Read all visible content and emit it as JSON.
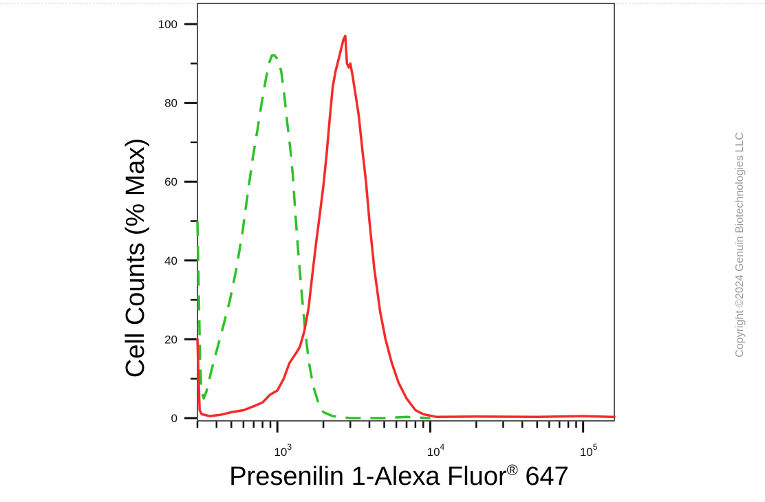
{
  "chart_data": {
    "type": "line",
    "xlabel": "Presenilin 1-Alexa Fluor",
    "xlabel_sup": "®",
    "xlabel_tail": " 647",
    "ylabel": "Cell Counts (% Max)",
    "x_scale": "log",
    "xlim": [
      300,
      160000
    ],
    "ylim": [
      0,
      104
    ],
    "y_ticks": [
      0,
      20,
      40,
      60,
      80,
      100
    ],
    "x_ticks": [
      {
        "value": 1000,
        "base": "10",
        "exp": "3"
      },
      {
        "value": 10000,
        "base": "10",
        "exp": "4"
      },
      {
        "value": 100000,
        "base": "10",
        "exp": "5"
      }
    ],
    "grid": false,
    "legend": "none",
    "series": [
      {
        "color": "#2fc12a",
        "style": "dashed",
        "points": [
          [
            300,
            50
          ],
          [
            305,
            35
          ],
          [
            312,
            15
          ],
          [
            318,
            7
          ],
          [
            330,
            5
          ],
          [
            345,
            7
          ],
          [
            370,
            12
          ],
          [
            400,
            17
          ],
          [
            440,
            23
          ],
          [
            490,
            30
          ],
          [
            540,
            38
          ],
          [
            590,
            47
          ],
          [
            640,
            57
          ],
          [
            690,
            66
          ],
          [
            740,
            73
          ],
          [
            790,
            80
          ],
          [
            840,
            86
          ],
          [
            880,
            90
          ],
          [
            920,
            92
          ],
          [
            960,
            92
          ],
          [
            1010,
            91
          ],
          [
            1060,
            88
          ],
          [
            1110,
            82
          ],
          [
            1160,
            75
          ],
          [
            1210,
            69
          ],
          [
            1260,
            62
          ],
          [
            1310,
            52
          ],
          [
            1370,
            42
          ],
          [
            1440,
            32
          ],
          [
            1520,
            22
          ],
          [
            1610,
            14
          ],
          [
            1720,
            8
          ],
          [
            1850,
            4
          ],
          [
            2000,
            1.5
          ],
          [
            2300,
            0.5
          ],
          [
            3000,
            0
          ],
          [
            5000,
            0
          ],
          [
            7000,
            0.3
          ],
          [
            10000,
            0
          ]
        ]
      },
      {
        "color": "#f52a2a",
        "style": "solid",
        "points": [
          [
            300,
            20
          ],
          [
            304,
            12
          ],
          [
            310,
            2
          ],
          [
            320,
            1
          ],
          [
            360,
            0.5
          ],
          [
            420,
            0.8
          ],
          [
            500,
            1.5
          ],
          [
            600,
            2
          ],
          [
            700,
            3
          ],
          [
            800,
            4
          ],
          [
            900,
            6
          ],
          [
            1000,
            7
          ],
          [
            1100,
            10
          ],
          [
            1200,
            14
          ],
          [
            1300,
            16
          ],
          [
            1400,
            18
          ],
          [
            1500,
            22
          ],
          [
            1600,
            28
          ],
          [
            1700,
            37
          ],
          [
            1800,
            45
          ],
          [
            1900,
            52
          ],
          [
            2000,
            59
          ],
          [
            2100,
            67
          ],
          [
            2200,
            76
          ],
          [
            2300,
            84
          ],
          [
            2400,
            88
          ],
          [
            2550,
            92
          ],
          [
            2700,
            96
          ],
          [
            2780,
            97
          ],
          [
            2850,
            90
          ],
          [
            2930,
            89
          ],
          [
            3000,
            90
          ],
          [
            3100,
            87
          ],
          [
            3250,
            82
          ],
          [
            3400,
            77
          ],
          [
            3600,
            68
          ],
          [
            3800,
            60
          ],
          [
            4000,
            50
          ],
          [
            4300,
            38
          ],
          [
            4700,
            27
          ],
          [
            5100,
            20
          ],
          [
            5600,
            14
          ],
          [
            6200,
            9
          ],
          [
            7000,
            5
          ],
          [
            8000,
            2
          ],
          [
            9000,
            1
          ],
          [
            11000,
            0.3
          ],
          [
            20000,
            0.4
          ],
          [
            50000,
            0.3
          ],
          [
            100000,
            0.5
          ],
          [
            160000,
            0.3
          ]
        ]
      }
    ]
  },
  "watermark": "Copyright ©2024 Genuin Biotechnologies LLC"
}
